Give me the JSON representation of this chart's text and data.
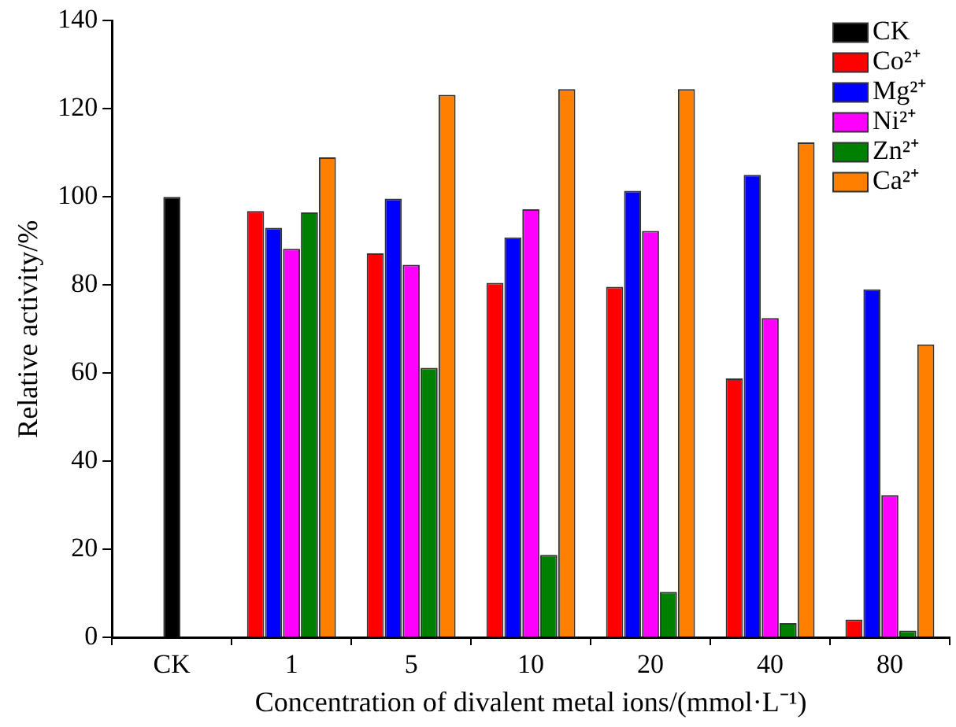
{
  "chart_data": {
    "type": "bar",
    "xlabel": "Concentration of divalent metal ions/(mmol·L⁻¹)",
    "ylabel": "Relative activity/%",
    "categories": [
      "CK",
      "1",
      "5",
      "10",
      "20",
      "40",
      "80"
    ],
    "series": [
      {
        "name": "CK",
        "color": "#000000",
        "values": [
          100,
          null,
          null,
          null,
          null,
          null,
          null
        ]
      },
      {
        "name": "Co²⁺",
        "color": "#ff0000",
        "values": [
          null,
          96.8,
          87.2,
          80.5,
          79.6,
          58.8,
          4
        ]
      },
      {
        "name": "Mg²⁺",
        "color": "#0000ff",
        "values": [
          null,
          93,
          99.6,
          90.8,
          101.4,
          105,
          79
        ]
      },
      {
        "name": "Ni²⁺",
        "color": "#ff00ff",
        "values": [
          null,
          88.2,
          84.6,
          97.2,
          92.3,
          72.5,
          32.3
        ]
      },
      {
        "name": "Zn²⁺",
        "color": "#008000",
        "values": [
          null,
          96.5,
          61.2,
          18.7,
          10.3,
          3.2,
          1.5
        ]
      },
      {
        "name": "Ca²⁺",
        "color": "#ff8000",
        "values": [
          null,
          109,
          123.2,
          124.5,
          124.5,
          112.4,
          66.5
        ]
      }
    ],
    "ylim": [
      0,
      140
    ],
    "yticks": [
      0,
      20,
      40,
      60,
      80,
      100,
      120,
      140
    ],
    "grid": false,
    "legend": "top right"
  }
}
